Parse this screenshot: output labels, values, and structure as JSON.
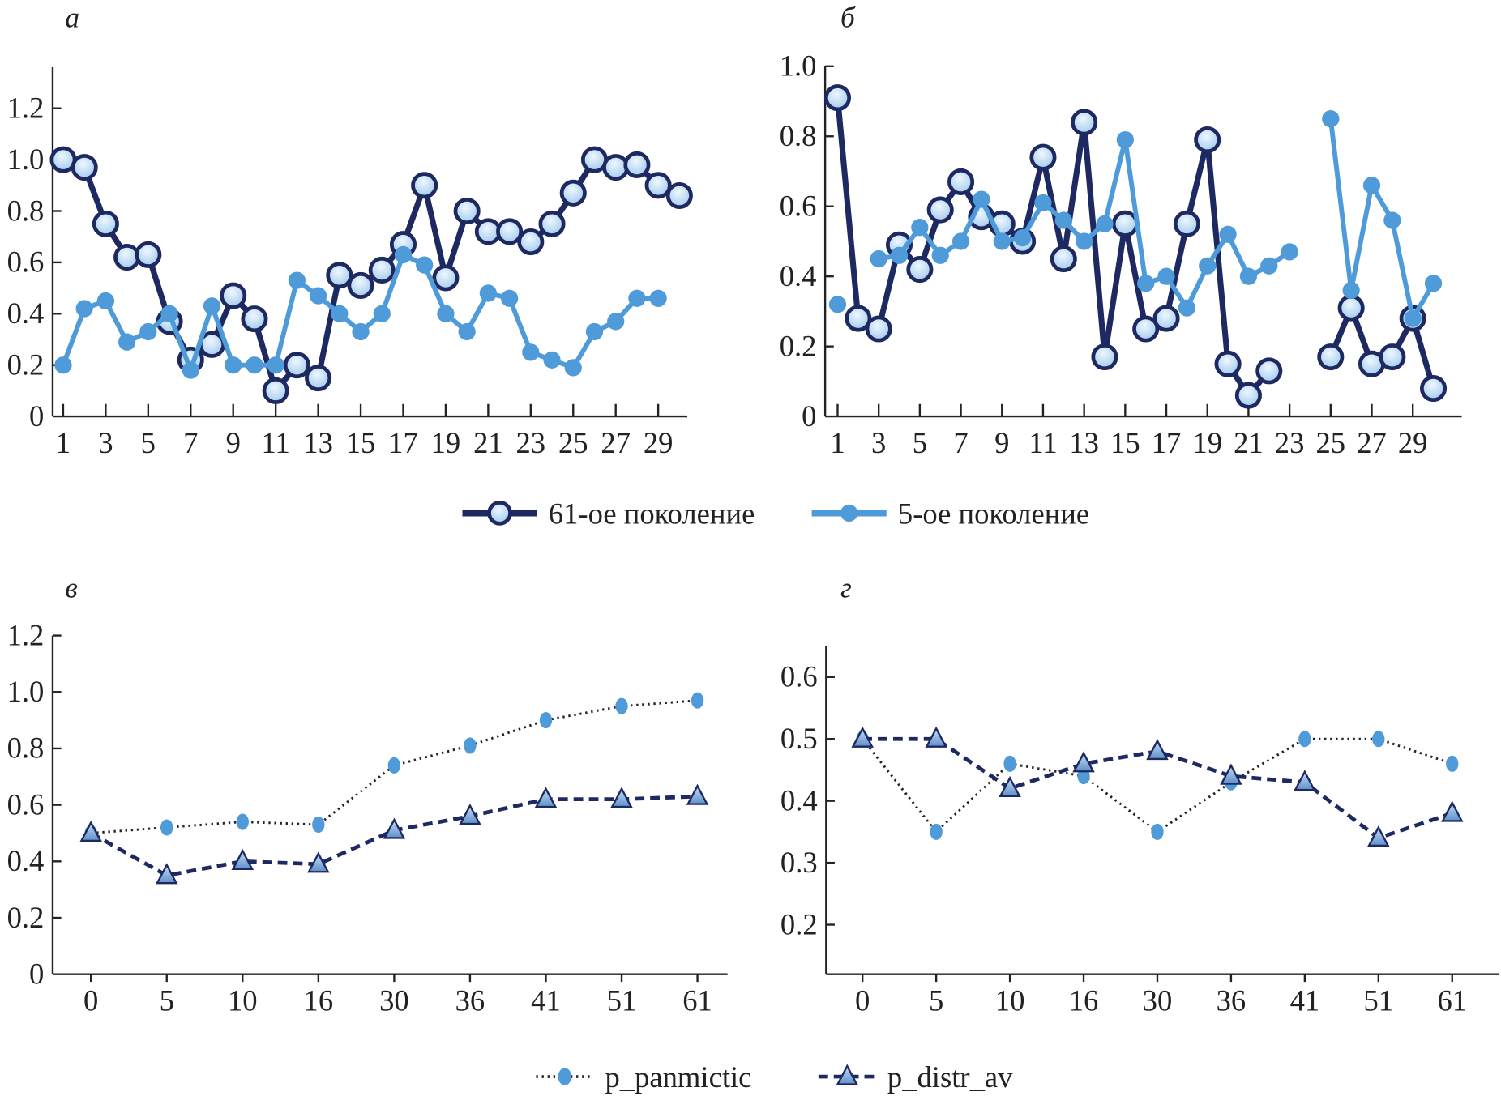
{
  "colors": {
    "dark": "#1d2960",
    "light": "#4f9ad8",
    "marker_fill": "#cfe5f8",
    "marker_dark_fill": "#8fb6df"
  },
  "legend_top": [
    {
      "label": "61-ое поколение",
      "series": "61"
    },
    {
      "label": "5-ое поколение",
      "series": "5"
    }
  ],
  "legend_bottom": [
    {
      "label": "p_panmictic",
      "series": "p_panmictic"
    },
    {
      "label": "p_distr_av",
      "series": "p_distr_av"
    }
  ],
  "chart_data": [
    {
      "panel_label": "а",
      "type": "line",
      "x": [
        1,
        2,
        3,
        4,
        5,
        6,
        7,
        8,
        9,
        10,
        11,
        12,
        13,
        14,
        15,
        16,
        17,
        18,
        19,
        20,
        21,
        22,
        23,
        24,
        25,
        26,
        27,
        28,
        29,
        30
      ],
      "xticks": [
        "1",
        "3",
        "5",
        "7",
        "9",
        "11",
        "13",
        "15",
        "17",
        "19",
        "21",
        "23",
        "25",
        "27",
        "29"
      ],
      "yticks": [
        "0",
        "0.2",
        "0.4",
        "0.6",
        "0.8",
        "1.0",
        "1.2"
      ],
      "ylim": [
        0,
        1.36
      ],
      "series": [
        {
          "name": "61-ое поколение",
          "style": "dark-circle",
          "values": [
            1.0,
            0.97,
            0.75,
            0.62,
            0.63,
            0.37,
            0.22,
            0.28,
            0.47,
            0.38,
            0.1,
            0.2,
            0.15,
            0.55,
            0.51,
            0.57,
            0.67,
            0.9,
            0.54,
            0.8,
            0.72,
            0.72,
            0.68,
            0.75,
            0.87,
            1.0,
            0.97,
            0.98,
            0.9,
            0.86
          ]
        },
        {
          "name": "5-ое поколение",
          "style": "light-dot",
          "values": [
            0.2,
            0.42,
            0.45,
            0.29,
            0.33,
            0.4,
            0.18,
            0.43,
            0.2,
            0.2,
            0.2,
            0.53,
            0.47,
            0.4,
            0.33,
            0.4,
            0.63,
            0.59,
            0.4,
            0.33,
            0.48,
            0.46,
            0.25,
            0.22,
            0.19,
            0.33,
            0.37,
            0.46,
            0.46,
            null
          ]
        }
      ]
    },
    {
      "panel_label": "б",
      "type": "line",
      "x": [
        1,
        2,
        3,
        4,
        5,
        6,
        7,
        8,
        9,
        10,
        11,
        12,
        13,
        14,
        15,
        16,
        17,
        18,
        19,
        20,
        21,
        22,
        23,
        24,
        25,
        26,
        27,
        28,
        29,
        30
      ],
      "xticks": [
        "1",
        "3",
        "5",
        "7",
        "9",
        "11",
        "13",
        "15",
        "17",
        "19",
        "21",
        "23",
        "25",
        "27",
        "29"
      ],
      "yticks": [
        "0",
        "0.2",
        "0.4",
        "0.6",
        "0.8",
        "1.0"
      ],
      "ylim": [
        0,
        1.0
      ],
      "series": [
        {
          "name": "61-ое поколение",
          "style": "dark-circle",
          "values": [
            0.91,
            0.28,
            0.25,
            0.49,
            0.42,
            0.59,
            0.67,
            0.57,
            0.55,
            0.5,
            0.74,
            0.45,
            0.84,
            0.17,
            0.55,
            0.25,
            0.28,
            0.55,
            0.79,
            0.15,
            0.06,
            0.13,
            null,
            null,
            0.17,
            0.31,
            0.15,
            0.17,
            0.28,
            0.08
          ]
        },
        {
          "name": "5-ое поколение",
          "style": "light-dot",
          "values": [
            0.32,
            null,
            0.45,
            0.46,
            0.54,
            0.46,
            0.5,
            0.62,
            0.5,
            0.51,
            0.61,
            0.56,
            0.5,
            0.55,
            0.79,
            0.38,
            0.4,
            0.31,
            0.43,
            0.52,
            0.4,
            0.43,
            0.47,
            null,
            0.85,
            0.36,
            0.66,
            0.56,
            0.28,
            0.38
          ]
        }
      ]
    },
    {
      "panel_label": "в",
      "type": "line",
      "categories": [
        "0",
        "5",
        "10",
        "16",
        "30",
        "36",
        "41",
        "51",
        "61"
      ],
      "yticks": [
        "0",
        "0.2",
        "0.4",
        "0.6",
        "0.8",
        "1.0",
        "1.2"
      ],
      "ylim": [
        0,
        1.2
      ],
      "series": [
        {
          "name": "p_panmictic",
          "style": "dotted-dot",
          "values": [
            0.5,
            0.52,
            0.54,
            0.53,
            0.74,
            0.81,
            0.9,
            0.95,
            0.97
          ]
        },
        {
          "name": "p_distr_av",
          "style": "dashed-triangle",
          "values": [
            0.5,
            0.35,
            0.4,
            0.39,
            0.51,
            0.56,
            0.62,
            0.62,
            0.63
          ]
        }
      ]
    },
    {
      "panel_label": "г",
      "type": "line",
      "categories": [
        "0",
        "5",
        "10",
        "16",
        "30",
        "36",
        "41",
        "51",
        "61"
      ],
      "yticks": [
        "0.2",
        "0.3",
        "0.4",
        "0.5",
        "0.6"
      ],
      "ylim": [
        0.12,
        0.65
      ],
      "series": [
        {
          "name": "p_panmictic",
          "style": "dotted-dot",
          "values": [
            0.5,
            0.35,
            0.46,
            0.44,
            0.35,
            0.43,
            0.5,
            0.5,
            0.46
          ]
        },
        {
          "name": "p_distr_av",
          "style": "dashed-triangle",
          "values": [
            0.5,
            0.5,
            0.42,
            0.46,
            0.48,
            0.44,
            0.43,
            0.34,
            0.38
          ]
        }
      ]
    }
  ]
}
